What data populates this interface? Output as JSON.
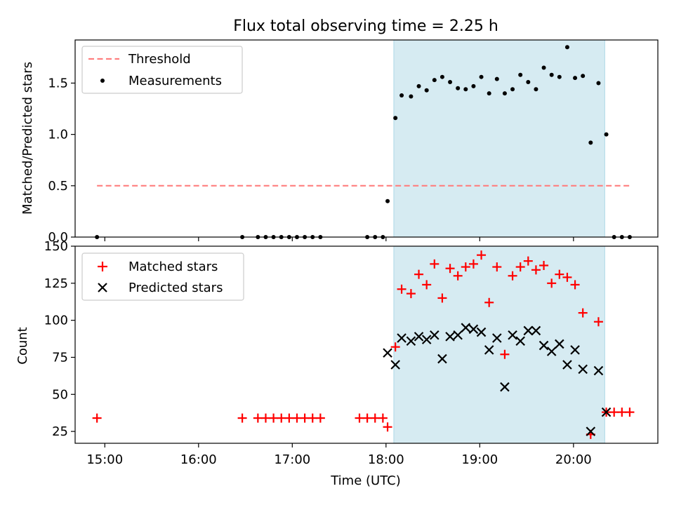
{
  "title": "Flux total observing time = 2.25 h",
  "colors": {
    "threshold": "#ff7f7f",
    "matched": "#ff0000",
    "predicted": "#000000",
    "span": "#add8e6",
    "measure": "#000000"
  },
  "chart_data": [
    {
      "type": "scatter",
      "ylabel": "Matched/Predicted stars",
      "xlim": [
        "14:41",
        "20:54"
      ],
      "ylim": [
        0,
        1.92
      ],
      "ytick_labels": [
        "0.0",
        "0.5",
        "1.0",
        "1.5"
      ],
      "grid": false,
      "legend_position": "top-left",
      "shaded_span": [
        "18:05",
        "20:20"
      ],
      "threshold": {
        "name": "Threshold",
        "y": 0.5,
        "x": [
          "14:55",
          "20:37"
        ]
      },
      "series": [
        {
          "name": "Measurements",
          "points": [
            [
              "14:55",
              0
            ],
            [
              "16:28",
              0
            ],
            [
              "16:38",
              0
            ],
            [
              "16:43",
              0
            ],
            [
              "16:48",
              0
            ],
            [
              "16:53",
              0
            ],
            [
              "16:58",
              0
            ],
            [
              "17:03",
              0
            ],
            [
              "17:08",
              0
            ],
            [
              "17:13",
              0
            ],
            [
              "17:18",
              0
            ],
            [
              "17:48",
              0
            ],
            [
              "17:53",
              0
            ],
            [
              "17:58",
              0
            ],
            [
              "18:01",
              0.35
            ],
            [
              "18:06",
              1.16
            ],
            [
              "18:10",
              1.38
            ],
            [
              "18:16",
              1.37
            ],
            [
              "18:21",
              1.47
            ],
            [
              "18:26",
              1.43
            ],
            [
              "18:31",
              1.53
            ],
            [
              "18:36",
              1.56
            ],
            [
              "18:41",
              1.51
            ],
            [
              "18:46",
              1.45
            ],
            [
              "18:51",
              1.44
            ],
            [
              "18:56",
              1.47
            ],
            [
              "19:01",
              1.56
            ],
            [
              "19:06",
              1.4
            ],
            [
              "19:11",
              1.54
            ],
            [
              "19:16",
              1.4
            ],
            [
              "19:21",
              1.44
            ],
            [
              "19:26",
              1.58
            ],
            [
              "19:31",
              1.51
            ],
            [
              "19:36",
              1.44
            ],
            [
              "19:41",
              1.65
            ],
            [
              "19:46",
              1.58
            ],
            [
              "19:51",
              1.56
            ],
            [
              "19:56",
              1.85
            ],
            [
              "20:01",
              1.55
            ],
            [
              "20:06",
              1.57
            ],
            [
              "20:11",
              0.92
            ],
            [
              "20:16",
              1.5
            ],
            [
              "20:21",
              1.0
            ],
            [
              "20:26",
              0
            ],
            [
              "20:31",
              0
            ],
            [
              "20:36",
              0
            ]
          ]
        }
      ]
    },
    {
      "type": "scatter",
      "xlabel": "Time (UTC)",
      "ylabel": "Count",
      "xlim": [
        "14:41",
        "20:54"
      ],
      "ylim": [
        17,
        150
      ],
      "xtick_labels": [
        "15:00",
        "16:00",
        "17:00",
        "18:00",
        "19:00",
        "20:00"
      ],
      "ytick_labels": [
        "25",
        "50",
        "75",
        "100",
        "125",
        "150"
      ],
      "grid": false,
      "legend_position": "top-left",
      "shaded_span": [
        "18:05",
        "20:20"
      ],
      "series": [
        {
          "name": "Matched stars",
          "points": [
            [
              "14:55",
              34
            ],
            [
              "16:28",
              34
            ],
            [
              "16:38",
              34
            ],
            [
              "16:43",
              34
            ],
            [
              "16:48",
              34
            ],
            [
              "16:53",
              34
            ],
            [
              "16:58",
              34
            ],
            [
              "17:03",
              34
            ],
            [
              "17:08",
              34
            ],
            [
              "17:13",
              34
            ],
            [
              "17:18",
              34
            ],
            [
              "17:43",
              34
            ],
            [
              "17:48",
              34
            ],
            [
              "17:53",
              34
            ],
            [
              "17:58",
              34
            ],
            [
              "18:01",
              28
            ],
            [
              "18:06",
              82
            ],
            [
              "18:10",
              121
            ],
            [
              "18:16",
              118
            ],
            [
              "18:21",
              131
            ],
            [
              "18:26",
              124
            ],
            [
              "18:31",
              138
            ],
            [
              "18:36",
              115
            ],
            [
              "18:41",
              135
            ],
            [
              "18:46",
              130
            ],
            [
              "18:51",
              136
            ],
            [
              "18:56",
              138
            ],
            [
              "19:01",
              144
            ],
            [
              "19:06",
              112
            ],
            [
              "19:11",
              136
            ],
            [
              "19:16",
              77
            ],
            [
              "19:21",
              130
            ],
            [
              "19:26",
              136
            ],
            [
              "19:31",
              140
            ],
            [
              "19:36",
              134
            ],
            [
              "19:41",
              137
            ],
            [
              "19:46",
              125
            ],
            [
              "19:51",
              131
            ],
            [
              "19:56",
              129
            ],
            [
              "20:01",
              124
            ],
            [
              "20:06",
              105
            ],
            [
              "20:11",
              23
            ],
            [
              "20:16",
              99
            ],
            [
              "20:21",
              38
            ],
            [
              "20:26",
              38
            ],
            [
              "20:31",
              38
            ],
            [
              "20:36",
              38
            ]
          ]
        },
        {
          "name": "Predicted stars",
          "points": [
            [
              "18:01",
              78
            ],
            [
              "18:06",
              70
            ],
            [
              "18:10",
              88
            ],
            [
              "18:16",
              86
            ],
            [
              "18:21",
              89
            ],
            [
              "18:26",
              87
            ],
            [
              "18:31",
              90
            ],
            [
              "18:36",
              74
            ],
            [
              "18:41",
              89
            ],
            [
              "18:46",
              90
            ],
            [
              "18:51",
              95
            ],
            [
              "18:56",
              94
            ],
            [
              "19:01",
              92
            ],
            [
              "19:06",
              80
            ],
            [
              "19:11",
              88
            ],
            [
              "19:16",
              55
            ],
            [
              "19:21",
              90
            ],
            [
              "19:26",
              86
            ],
            [
              "19:31",
              93
            ],
            [
              "19:36",
              93
            ],
            [
              "19:41",
              83
            ],
            [
              "19:46",
              79
            ],
            [
              "19:51",
              84
            ],
            [
              "19:56",
              70
            ],
            [
              "20:01",
              80
            ],
            [
              "20:06",
              67
            ],
            [
              "20:11",
              25
            ],
            [
              "20:16",
              66
            ],
            [
              "20:21",
              38
            ]
          ]
        }
      ]
    }
  ]
}
